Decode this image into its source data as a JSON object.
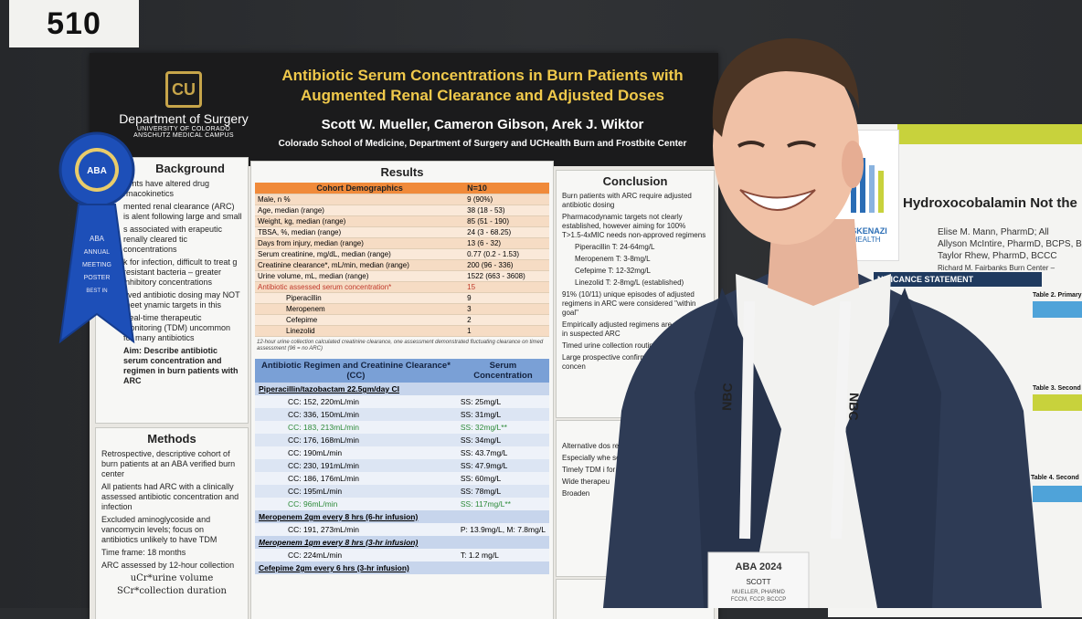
{
  "booth_number": "510",
  "poster": {
    "department": {
      "name": "Department of Surgery",
      "university": "UNIVERSITY OF COLORADO",
      "campus": "ANSCHUTZ MEDICAL CAMPUS"
    },
    "title_line1": "Antibiotic Serum Concentrations in Burn Patients with",
    "title_line2": "Augmented Renal Clearance and Adjusted Doses",
    "authors": "Scott W. Mueller, Cameron Gibson, Arek J. Wiktor",
    "affiliation": "Colorado School of Medicine, Department of Surgery and UCHealth Burn and Frostbite Center",
    "background": {
      "title": "Background",
      "bullets": [
        "tients have altered drug rmacokinetics",
        "mented renal clearance (ARC) is alent following large and small",
        "s associated with erapeutic renally cleared tic concentrations",
        "k for infection, difficult to treat g resistant bacteria – greater inhibitory concentrations",
        "oved antibiotic dosing may NOT meet ynamic targets in this",
        "Real-time therapeutic monitoring (TDM) uncommon for many antibiotics",
        "Aim: Describe antibiotic serum concentration and regimen in burn patients with ARC"
      ]
    },
    "methods": {
      "title": "Methods",
      "bullets": [
        "Retrospective, descriptive cohort of burn patients at an ABA verified burn center",
        "All patients had ARC with a clinically assessed antibiotic concentration and infection",
        "Excluded aminoglycoside and vancomycin levels; focus on antibiotics unlikely to have TDM",
        "Time frame: 18 months",
        "ARC assessed by 12-hour collection"
      ],
      "formula_top": "uCr*urine volume",
      "formula_bottom": "SCr*collection duration"
    },
    "results": {
      "title": "Results",
      "demo_header": [
        "Cohort Demographics",
        "N=10"
      ],
      "demo_rows": [
        [
          "Male, n %",
          "9 (90%)"
        ],
        [
          "Age, median (range)",
          "38 (18 - 53)"
        ],
        [
          "Weight, kg, median (range)",
          "85 (51 - 190)"
        ],
        [
          "TBSA, %, median (range)",
          "24 (3 - 68.25)"
        ],
        [
          "Days from injury, median (range)",
          "13 (6 - 32)"
        ],
        [
          "Serum creatinine, mg/dL, median (range)",
          "0.77 (0.2 - 1.53)"
        ],
        [
          "Creatinine clearance*, mL/min, median (range)",
          "200 (96 - 336)"
        ],
        [
          "Urine volume, mL, median (range)",
          "1522 (663 - 3608)"
        ],
        [
          "Antibiotic assessed serum concentration*",
          "15"
        ],
        [
          "Piperacillin",
          "9"
        ],
        [
          "Meropenem",
          "3"
        ],
        [
          "Cefepime",
          "2"
        ],
        [
          "Linezolid",
          "1"
        ]
      ],
      "footnote": "12-hour urine collection calculated creatinine clearance, one assessment demonstrated fluctuating clearance on timed assessment (96 = no ARC)",
      "abx_header": [
        "Antibiotic Regimen and Creatinine Clearance* (CC)",
        "Serum Concentration"
      ],
      "pip_header": "Piperacillin/tazobactam 22.5gm/day CI",
      "pip_rows": [
        [
          "CC: 152, 220mL/min",
          "SS: 25mg/L"
        ],
        [
          "CC: 336, 150mL/min",
          "SS: 31mg/L"
        ],
        [
          "CC: 183, 213mL/min",
          "SS: 32mg/L**"
        ],
        [
          "CC: 176, 168mL/min",
          "SS: 34mg/L"
        ],
        [
          "CC: 190mL/min",
          "SS: 43.7mg/L"
        ],
        [
          "CC: 230, 191mL/min",
          "SS: 47.9mg/L"
        ],
        [
          "CC: 186, 176mL/min",
          "SS: 60mg/L"
        ],
        [
          "CC: 195mL/min",
          "SS: 78mg/L"
        ],
        [
          "CC: 96mL/min",
          "SS: 117mg/L**"
        ]
      ],
      "mero_header": "Meropenem 2gm every 8 hrs (6-hr infusion)",
      "mero_rows": [
        [
          "CC: 191, 273mL/min",
          "P: 13.9mg/L, M: 7.8mg/L"
        ]
      ],
      "mero2_header": "Meropenem 1gm every 8 hrs (3-hr infusion)",
      "mero2_rows": [
        [
          "CC: 224mL/min",
          "T: 1.2 mg/L"
        ]
      ],
      "cef_header": "Cefepime 2gm every 6 hrs (3-hr infusion)"
    },
    "conclusion": {
      "title": "Conclusion",
      "bullets": [
        "Burn patients with ARC require adjusted antibiotic dosing",
        "Pharmacodynamic targets not clearly established, however aiming for 100% T>1.5-4xMIC needs non-approved regimens",
        "Piperacillin T: 24-64mg/L",
        "Meropenem T: 3-8mg/L",
        "Cefepime T: 12-32mg/L",
        "Linezolid T: 2-8mg/L (established)",
        "91% (10/11) unique episodes of adjusted regimens in ARC were considered \"within goal\"",
        "Empirically adjusted regimens are warranted in suspected ARC",
        "Timed urine collection routinely assessed",
        "Large prospective confirm results antibiotic concen"
      ],
      "applic_title": "Appli",
      "applic_bullets": [
        "Alternative dos required in thos",
        "Especially whe seeded pathog",
        "Timely TDM i for most antib",
        "Wide therapeu",
        "Broaden"
      ],
      "ack_title": "Ackn"
    }
  },
  "ribbon": {
    "org": "ABA",
    "line1": "ANNUAL",
    "line2": "MEETING",
    "line3": "POSTER",
    "line4": "BEST IN"
  },
  "neighbor_poster": {
    "logo_line1": "ESKENAZI",
    "logo_line2": "HEALTH",
    "title": "Hydroxocobalamin Not the",
    "authors_line1": "Elise M. Mann, PharmD; All",
    "authors_line2": "Allyson McIntire, PharmD, BCPS, BC",
    "authors_line3": "Taylor Rhew, PharmD, BCCC",
    "authors_line4": "Richard M. Fairbanks Burn Center –",
    "significance": "NIFICANCE STATEMENT",
    "table2": "Table 2. Primary",
    "table3": "Table 3. Second",
    "table4": "Table 4. Second"
  },
  "badge": {
    "event": "ABA 2024",
    "name": "SCOTT",
    "surname": "MUELLER, PHARMD",
    "creds": "FCCM, FCCP, BCCCP",
    "lanyard": "NBC"
  },
  "colors": {
    "header_bg": "#1b1b1c",
    "title_gold": "#f0c94b",
    "demo_orange": "#f08a3a",
    "table_blue": "#7aa0d6",
    "ribbon_blue": "#1d4fb8",
    "suit": "#2e3b55"
  }
}
